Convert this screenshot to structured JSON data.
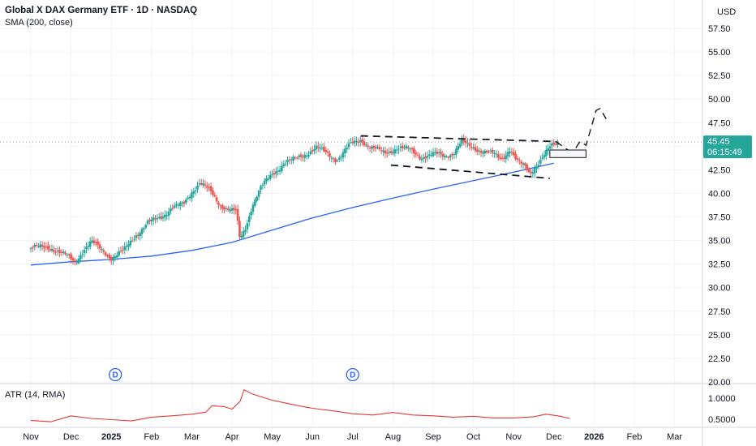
{
  "header": {
    "title": "Global X DAX Germany ETF · 1D · NASDAQ",
    "indicator": "SMA (200, close)"
  },
  "currency": "USD",
  "last_price": "45.45",
  "countdown": "06:15:49",
  "colors": {
    "up": "#26a69a",
    "down": "#ef5350",
    "sma": "#2962ff",
    "atr": "#e53935",
    "grid": "#f0f3fa",
    "text": "#131722",
    "badge": "#26a69a"
  },
  "chart_data": {
    "type": "candlestick",
    "title": "Global X DAX Germany ETF · 1D · NASDAQ",
    "ylim": [
      20,
      58.75
    ],
    "y_ticks": [
      "57.50",
      "55.00",
      "52.50",
      "50.00",
      "47.50",
      "45.00",
      "42.50",
      "40.00",
      "37.50",
      "35.00",
      "32.50",
      "30.00",
      "27.50",
      "25.00",
      "22.50",
      "20.00"
    ],
    "x_labels": [
      "Nov",
      "Dec",
      "2025",
      "Feb",
      "Mar",
      "Apr",
      "May",
      "Jun",
      "Jul",
      "Aug",
      "Sep",
      "Oct",
      "Nov",
      "Dec",
      "2026",
      "Feb",
      "Mar"
    ],
    "price_path": [
      {
        "m": 0.0,
        "p": 34.2
      },
      {
        "m": 0.5,
        "p": 34.3
      },
      {
        "m": 0.9,
        "p": 33.3
      },
      {
        "m": 1.1,
        "p": 32.7
      },
      {
        "m": 1.3,
        "p": 34.0
      },
      {
        "m": 1.5,
        "p": 34.8
      },
      {
        "m": 1.8,
        "p": 33.9
      },
      {
        "m": 2.0,
        "p": 33.2
      },
      {
        "m": 2.3,
        "p": 33.8
      },
      {
        "m": 2.6,
        "p": 35.6
      },
      {
        "m": 2.9,
        "p": 36.8
      },
      {
        "m": 3.2,
        "p": 37.4
      },
      {
        "m": 3.5,
        "p": 38.5
      },
      {
        "m": 3.8,
        "p": 38.8
      },
      {
        "m": 4.0,
        "p": 40.2
      },
      {
        "m": 4.2,
        "p": 41.2
      },
      {
        "m": 4.45,
        "p": 40.2
      },
      {
        "m": 4.7,
        "p": 38.8
      },
      {
        "m": 5.1,
        "p": 38.0
      },
      {
        "m": 5.2,
        "p": 35.0
      },
      {
        "m": 5.35,
        "p": 36.5
      },
      {
        "m": 5.5,
        "p": 38.8
      },
      {
        "m": 5.7,
        "p": 40.5
      },
      {
        "m": 6.0,
        "p": 42.0
      },
      {
        "m": 6.3,
        "p": 43.3
      },
      {
        "m": 6.6,
        "p": 43.6
      },
      {
        "m": 6.9,
        "p": 44.4
      },
      {
        "m": 7.1,
        "p": 44.9
      },
      {
        "m": 7.3,
        "p": 44.3
      },
      {
        "m": 7.6,
        "p": 43.6
      },
      {
        "m": 7.9,
        "p": 45.0
      },
      {
        "m": 8.2,
        "p": 45.7
      },
      {
        "m": 8.5,
        "p": 44.8
      },
      {
        "m": 8.8,
        "p": 44.2
      },
      {
        "m": 9.1,
        "p": 44.9
      },
      {
        "m": 9.4,
        "p": 44.6
      },
      {
        "m": 9.7,
        "p": 43.9
      },
      {
        "m": 10.0,
        "p": 44.1
      },
      {
        "m": 10.3,
        "p": 44.0
      },
      {
        "m": 10.5,
        "p": 44.3
      },
      {
        "m": 10.7,
        "p": 45.4
      },
      {
        "m": 10.95,
        "p": 44.9
      },
      {
        "m": 11.2,
        "p": 44.6
      },
      {
        "m": 11.5,
        "p": 44.1
      },
      {
        "m": 11.7,
        "p": 43.6
      },
      {
        "m": 11.9,
        "p": 44.8
      },
      {
        "m": 12.1,
        "p": 43.3
      },
      {
        "m": 12.3,
        "p": 42.7
      },
      {
        "m": 12.4,
        "p": 42.1
      },
      {
        "m": 12.55,
        "p": 43.0
      },
      {
        "m": 12.75,
        "p": 44.0
      },
      {
        "m": 12.9,
        "p": 44.8
      },
      {
        "m": 13.05,
        "p": 45.2
      },
      {
        "m": 13.1,
        "p": 45.45
      }
    ],
    "sma_200": [
      {
        "m": 0,
        "p": 32.4
      },
      {
        "m": 1,
        "p": 32.75
      },
      {
        "m": 2,
        "p": 33.0
      },
      {
        "m": 3,
        "p": 33.35
      },
      {
        "m": 4,
        "p": 33.95
      },
      {
        "m": 5,
        "p": 34.8
      },
      {
        "m": 6,
        "p": 36.1
      },
      {
        "m": 7,
        "p": 37.4
      },
      {
        "m": 8,
        "p": 38.5
      },
      {
        "m": 9,
        "p": 39.5
      },
      {
        "m": 10,
        "p": 40.45
      },
      {
        "m": 11,
        "p": 41.35
      },
      {
        "m": 12,
        "p": 42.25
      },
      {
        "m": 13,
        "p": 43.2
      }
    ],
    "drawings": {
      "channel_upper": [
        {
          "m": 8.2,
          "p": 46.1
        },
        {
          "m": 13.05,
          "p": 45.5
        }
      ],
      "channel_lower": [
        {
          "m": 8.95,
          "p": 43.0
        },
        {
          "m": 12.9,
          "p": 41.6
        }
      ],
      "projection": [
        {
          "m": 13.05,
          "p": 45.5
        },
        {
          "m": 13.35,
          "p": 44.6
        },
        {
          "m": 13.5,
          "p": 44.5
        },
        {
          "m": 13.65,
          "p": 45.5
        },
        {
          "m": 13.8,
          "p": 45.1
        },
        {
          "m": 14.05,
          "p": 48.8
        },
        {
          "m": 14.15,
          "p": 49.0
        },
        {
          "m": 14.3,
          "p": 47.9
        }
      ],
      "target_box": {
        "m1": 12.9,
        "m2": 13.8,
        "p_top": 44.6,
        "p_bottom": 43.8
      }
    },
    "dividend_markers": [
      {
        "m": 2.1,
        "label": "D"
      },
      {
        "m": 8.0,
        "label": "D"
      }
    ],
    "atr": {
      "title": "ATR (14, RMA)",
      "ylim": [
        0.4,
        1.26
      ],
      "y_ticks": [
        "1.0000",
        "0.5000"
      ],
      "path": [
        {
          "m": 0,
          "p": 0.47
        },
        {
          "m": 0.5,
          "p": 0.44
        },
        {
          "m": 1.0,
          "p": 0.58
        },
        {
          "m": 1.5,
          "p": 0.52
        },
        {
          "m": 2.0,
          "p": 0.49
        },
        {
          "m": 2.5,
          "p": 0.46
        },
        {
          "m": 3.0,
          "p": 0.55
        },
        {
          "m": 3.5,
          "p": 0.58
        },
        {
          "m": 4.0,
          "p": 0.62
        },
        {
          "m": 4.35,
          "p": 0.67
        },
        {
          "m": 4.5,
          "p": 0.82
        },
        {
          "m": 4.8,
          "p": 0.8
        },
        {
          "m": 5.0,
          "p": 0.74
        },
        {
          "m": 5.2,
          "p": 0.92
        },
        {
          "m": 5.3,
          "p": 1.2
        },
        {
          "m": 5.5,
          "p": 1.1
        },
        {
          "m": 6.0,
          "p": 0.95
        },
        {
          "m": 6.5,
          "p": 0.85
        },
        {
          "m": 7.0,
          "p": 0.76
        },
        {
          "m": 7.5,
          "p": 0.7
        },
        {
          "m": 8.0,
          "p": 0.63
        },
        {
          "m": 8.5,
          "p": 0.6
        },
        {
          "m": 9.0,
          "p": 0.66
        },
        {
          "m": 9.5,
          "p": 0.6
        },
        {
          "m": 10.0,
          "p": 0.58
        },
        {
          "m": 10.5,
          "p": 0.55
        },
        {
          "m": 11.0,
          "p": 0.57
        },
        {
          "m": 11.5,
          "p": 0.53
        },
        {
          "m": 12.0,
          "p": 0.53
        },
        {
          "m": 12.5,
          "p": 0.56
        },
        {
          "m": 12.8,
          "p": 0.62
        },
        {
          "m": 13.1,
          "p": 0.58
        },
        {
          "m": 13.4,
          "p": 0.52
        }
      ]
    }
  }
}
